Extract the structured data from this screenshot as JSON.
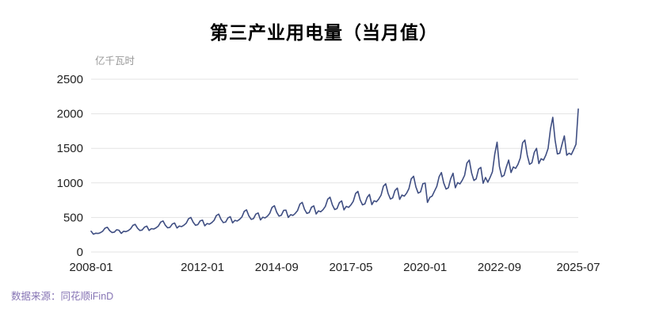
{
  "chart_data": {
    "type": "line",
    "title": "第三产业用电量（当月值）",
    "ylabel": "亿千瓦时",
    "xlabel": "",
    "frequency": "monthly",
    "start_month": "2008-01",
    "end_month": "2025-07",
    "ylim": [
      0,
      2500
    ],
    "yticks": [
      0,
      500,
      1000,
      1500,
      2000,
      2500
    ],
    "x_ticks": [
      {
        "label": "2008-01",
        "index": 0
      },
      {
        "label": "2012-01",
        "index": 48
      },
      {
        "label": "2014-09",
        "index": 80
      },
      {
        "label": "2017-05",
        "index": 112
      },
      {
        "label": "2020-01",
        "index": 144
      },
      {
        "label": "2022-09",
        "index": 176
      },
      {
        "label": "2025-07",
        "index": 210
      }
    ],
    "line_color": "#3f4e82",
    "grid": true,
    "legend": "none",
    "values": [
      300,
      258,
      272,
      268,
      280,
      300,
      345,
      358,
      310,
      282,
      288,
      322,
      315,
      270,
      300,
      295,
      310,
      335,
      385,
      400,
      345,
      312,
      318,
      360,
      375,
      312,
      338,
      332,
      350,
      376,
      434,
      450,
      388,
      350,
      358,
      405,
      420,
      348,
      375,
      368,
      388,
      418,
      482,
      500,
      430,
      388,
      396,
      450,
      462,
      380,
      412,
      404,
      426,
      458,
      528,
      548,
      472,
      426,
      435,
      494,
      512,
      422,
      458,
      448,
      473,
      508,
      588,
      610,
      524,
      473,
      483,
      548,
      565,
      465,
      503,
      493,
      520,
      560,
      646,
      670,
      576,
      520,
      532,
      603,
      605,
      500,
      540,
      530,
      558,
      600,
      694,
      718,
      618,
      558,
      570,
      648,
      668,
      550,
      595,
      583,
      615,
      662,
      764,
      792,
      681,
      615,
      628,
      714,
      740,
      610,
      660,
      646,
      682,
      733,
      847,
      877,
      754,
      682,
      696,
      790,
      832,
      686,
      742,
      727,
      767,
      825,
      953,
      987,
      849,
      767,
      783,
      890,
      925,
      762,
      825,
      808,
      852,
      917,
      1059,
      1096,
      943,
      852,
      870,
      988,
      998,
      718,
      790,
      810,
      880,
      950,
      1090,
      1150,
      1000,
      910,
      930,
      1060,
      1140,
      930,
      1005,
      985,
      1040,
      1110,
      1285,
      1330,
      1145,
      1035,
      1058,
      1200,
      1225,
      995,
      1078,
      1010,
      1080,
      1160,
      1420,
      1590,
      1240,
      1090,
      1110,
      1230,
      1330,
      1150,
      1230,
      1210,
      1270,
      1360,
      1580,
      1620,
      1400,
      1270,
      1290,
      1440,
      1500,
      1280,
      1350,
      1330,
      1400,
      1500,
      1780,
      1950,
      1620,
      1420,
      1430,
      1560,
      1680,
      1400,
      1430,
      1410,
      1480,
      1560,
      2070
    ]
  },
  "source": {
    "text": "数据来源：同花顺iFinD",
    "color": "#8674b4"
  }
}
